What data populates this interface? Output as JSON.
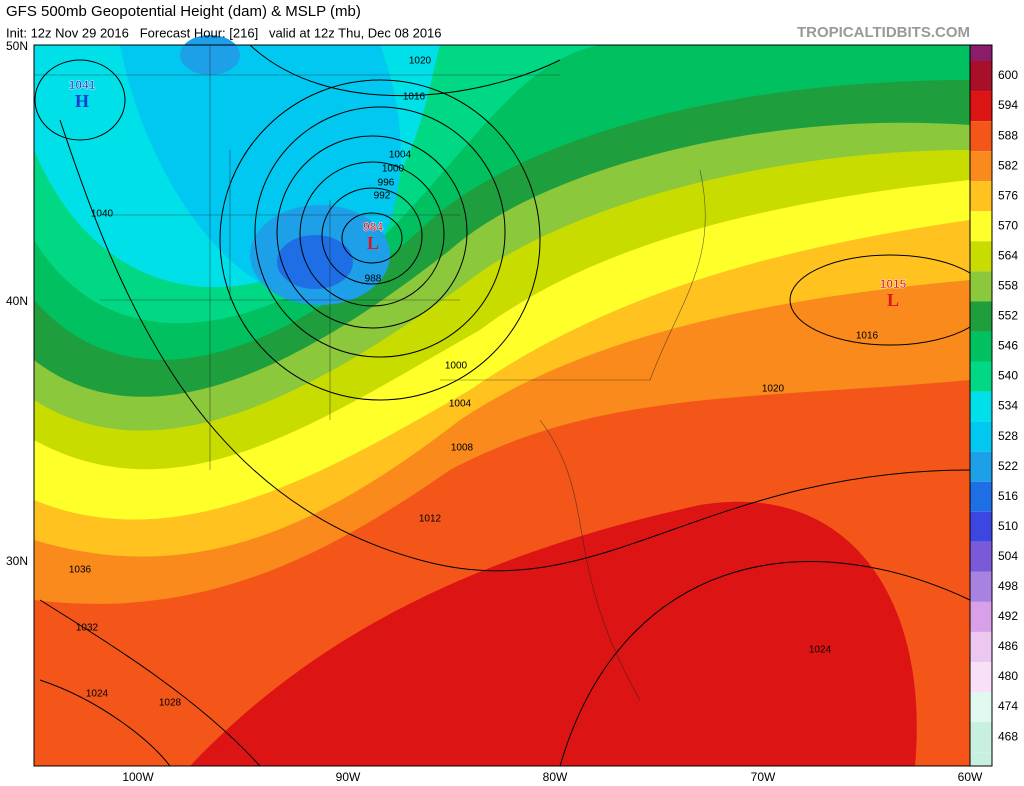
{
  "header": {
    "title": "GFS 500mb Geopotential Height (dam) & MSLP (mb)",
    "subtitle": "Init: 12z Nov 29 2016   Forecast Hour: [216]   valid at 12z Thu, Dec 08 2016",
    "site": "TROPICALTIDBITS.COM"
  },
  "map": {
    "lat_labels": [
      "50N",
      "40N",
      "30N"
    ],
    "lon_labels": [
      "100W",
      "90W",
      "80W",
      "70W",
      "60W"
    ],
    "centers": [
      {
        "label": "H",
        "value": 1041
      },
      {
        "label": "L",
        "value": 984
      },
      {
        "label": "L",
        "value": 1015
      }
    ],
    "contour_labels": [
      1020,
      1016,
      1004,
      1000,
      996,
      992,
      988,
      1040,
      1000,
      1004,
      1008,
      1012,
      1036,
      1032,
      1024,
      1028,
      1020,
      1016,
      1024
    ]
  },
  "colorbar": {
    "levels": [
      600,
      594,
      588,
      582,
      576,
      570,
      564,
      558,
      552,
      546,
      540,
      534,
      528,
      522,
      516,
      510,
      504,
      498,
      492,
      486,
      480,
      474,
      468
    ],
    "colors": [
      "#a8102a",
      "#dd1414",
      "#f4561a",
      "#fa8a1c",
      "#ffc21f",
      "#ffff29",
      "#c8dc00",
      "#8cc83c",
      "#1e9e3c",
      "#00c060",
      "#00d884",
      "#00e0e8",
      "#00c8f0",
      "#1ea0e8",
      "#1e6ee6",
      "#3c46e0",
      "#7a5ad8",
      "#a882e0",
      "#d8a0e8",
      "#ecc8f0",
      "#f8e0f8",
      "#e0f8f0",
      "#c8f0e0"
    ]
  }
}
